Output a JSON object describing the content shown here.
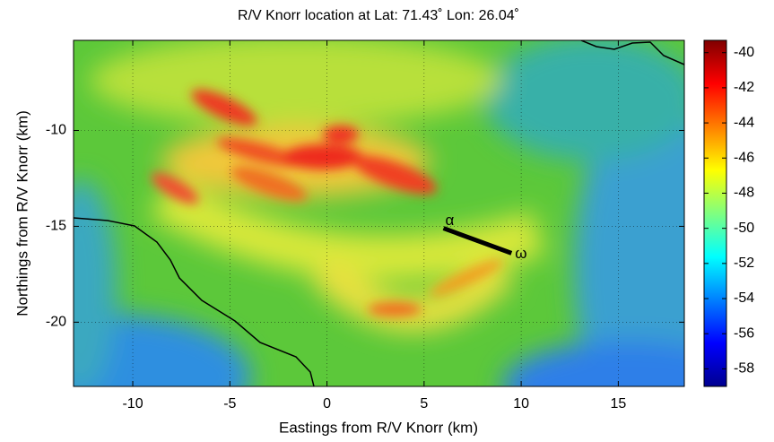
{
  "chart_data": {
    "type": "heatmap",
    "title": "R/V Knorr location at Lat: 71.43˚ Lon: 26.04˚",
    "xlabel": "Eastings from R/V Knorr (km)",
    "ylabel": "Northings from R/V Knorr (km)",
    "xlim": [
      -13.05,
      18.4
    ],
    "ylim": [
      -23.35,
      -5.3
    ],
    "xticks": [
      -10,
      -5,
      0,
      5,
      10,
      15
    ],
    "yticks": [
      -10,
      -15,
      -20
    ],
    "grid": true,
    "colormap": "jet",
    "clim": [
      -59,
      -39.3
    ],
    "cticks": [
      -40,
      -42,
      -44,
      -46,
      -48,
      -50,
      -52,
      -54,
      -56,
      -58
    ],
    "track": {
      "x": [
        6,
        9.5
      ],
      "y": [
        -15.1,
        -16.4
      ],
      "labels": [
        "α",
        "ω"
      ],
      "color": "#000000"
    }
  }
}
